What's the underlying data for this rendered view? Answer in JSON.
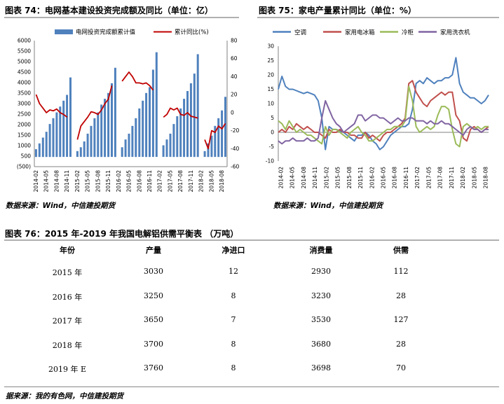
{
  "fig74": {
    "title": "图表 74：电网基本建设投资完成额及同比（单位：亿）",
    "source": "数据来源：Wind，中信建投期货"
  },
  "fig75": {
    "title": "图表 75：家电产量累计同比（单位：%）",
    "source": "数据来源：Wind，中信建投期货"
  },
  "fig76": {
    "title": "图表 76：2015 年-2019 年我国电解铝供需平衡表 （万吨）",
    "headers": [
      "年份",
      "产量",
      "净进口",
      "消费量",
      "供需"
    ],
    "rows": [
      [
        "2015 年",
        "3030",
        "12",
        "2930",
        "112"
      ],
      [
        "2016 年",
        "3250",
        "8",
        "3230",
        "28"
      ],
      [
        "2017 年",
        "3650",
        "7",
        "3530",
        "127"
      ],
      [
        "2018 年",
        "3700",
        "8",
        "3680",
        "28"
      ],
      [
        "2019 年 E",
        "3760",
        "8",
        "3698",
        "70"
      ]
    ],
    "source": "据来源：我的有色网，中信建投期货"
  },
  "chart_data": [
    {
      "type": "bar",
      "id": "fig74",
      "x_ticks": [
        "2014-02",
        "2014-05",
        "2014-08",
        "2014-11",
        "2015-02",
        "2015-05",
        "2015-08",
        "2015-11",
        "2016-02",
        "2016-05",
        "2016-08",
        "2016-11",
        "2017-02",
        "2017-05",
        "2017-08",
        "2017-11",
        "2018-02",
        "2018-05",
        "2018-08"
      ],
      "categories": [
        "2014-02",
        "2014-03",
        "2014-04",
        "2014-05",
        "2014-06",
        "2014-07",
        "2014-08",
        "2014-09",
        "2014-10",
        "2014-11",
        "2014-12",
        "2015-01",
        "2015-02",
        "2015-03",
        "2015-04",
        "2015-05",
        "2015-06",
        "2015-07",
        "2015-08",
        "2015-09",
        "2015-10",
        "2015-11",
        "2015-12",
        "2016-01",
        "2016-02",
        "2016-03",
        "2016-04",
        "2016-05",
        "2016-06",
        "2016-07",
        "2016-08",
        "2016-09",
        "2016-10",
        "2016-11",
        "2016-12",
        "2017-01",
        "2017-02",
        "2017-03",
        "2017-04",
        "2017-05",
        "2017-06",
        "2017-07",
        "2017-08",
        "2017-09",
        "2017-10",
        "2017-11",
        "2017-12",
        "2018-01",
        "2018-02",
        "2018-03",
        "2018-04",
        "2018-05",
        "2018-06",
        "2018-07",
        "2018-08",
        "2018-09"
      ],
      "series": [
        {
          "name": "电网投资完成额累计值",
          "axis": "left",
          "color": "#4f81bd",
          "values": [
            400,
            700,
            1000,
            1300,
            1700,
            2000,
            2300,
            2600,
            2900,
            3200,
            4100,
            null,
            300,
            500,
            800,
            1200,
            1600,
            2000,
            2300,
            2700,
            3000,
            3300,
            3800,
            4600,
            null,
            500,
            900,
            1200,
            1600,
            2000,
            2500,
            2900,
            3300,
            3600,
            4500,
            5400,
            null,
            600,
            900,
            1200,
            1700,
            2100,
            2500,
            3000,
            3400,
            3800,
            4300,
            5300,
            null,
            300,
            700,
            1100,
            1600,
            2000,
            2400,
            3100
          ]
        },
        {
          "name": "累计同比(%)",
          "axis": "right",
          "color": "#c00000",
          "values": [
            20,
            10,
            5,
            0,
            3,
            2,
            4,
            0,
            -2,
            -5,
            null,
            null,
            -30,
            -15,
            -10,
            -5,
            1,
            0,
            -2,
            3,
            10,
            15,
            30,
            null,
            null,
            35,
            40,
            45,
            40,
            33,
            33,
            32,
            33,
            30,
            25,
            null,
            null,
            -5,
            -2,
            5,
            3,
            5,
            -2,
            -3,
            0,
            -4,
            -5,
            -6,
            null,
            -30,
            -40,
            -20,
            -22,
            -15,
            -18,
            -12
          ]
        }
      ],
      "ylim_left": [
        -500,
        6000
      ],
      "ylim_right": [
        -60,
        80
      ],
      "yticks_left": [
        "(500)",
        "500",
        "1000",
        "1500",
        "2000",
        "2500",
        "3000",
        "3500",
        "4000",
        "4500",
        "5000",
        "5500",
        "6000"
      ],
      "yticks_right": [
        "-60",
        "-40",
        "-20",
        "0",
        "20",
        "40",
        "60",
        "80"
      ],
      "legend": "top"
    },
    {
      "type": "line",
      "id": "fig75",
      "x_ticks": [
        "2014-02",
        "2014-05",
        "2014-08",
        "2014-11",
        "2015-02",
        "2015-05",
        "2015-08",
        "2015-11",
        "2016-02",
        "2016-05",
        "2016-08",
        "2016-11",
        "2017-02",
        "2017-05",
        "2017-08",
        "2017-11",
        "2018-02",
        "2018-05",
        "2018-08"
      ],
      "series": [
        {
          "name": "空调",
          "color": "#4f81bd",
          "values": [
            15,
            19.5,
            16,
            15,
            15,
            14.5,
            14,
            13.5,
            14,
            13.5,
            13,
            11,
            5,
            -6,
            2,
            1,
            1,
            0.5,
            0,
            -1,
            -2,
            -3,
            -1,
            -1,
            0,
            -1,
            -3,
            -4,
            -6,
            -5,
            -3,
            -1,
            0,
            1,
            2,
            2,
            3,
            8,
            17,
            18,
            17,
            19,
            18,
            17,
            18,
            18,
            19,
            19,
            20,
            26,
            17,
            14,
            13,
            12,
            12,
            11,
            10,
            11,
            13
          ]
        },
        {
          "name": "家用电冰箱",
          "color": "#c0504d",
          "values": [
            0,
            1,
            0,
            2,
            1,
            3,
            2,
            1,
            2,
            1,
            0,
            0,
            -1,
            -2,
            1,
            0,
            0,
            1,
            0,
            0,
            -1,
            -1,
            -2,
            -2,
            0,
            -2,
            -1,
            -2,
            -3,
            -1,
            0,
            0,
            1,
            2,
            3,
            5,
            17,
            18,
            14,
            12,
            10,
            9,
            11,
            12,
            13,
            14,
            13,
            14,
            14,
            6,
            4,
            -2,
            -3,
            1,
            2,
            1,
            0,
            1,
            2
          ]
        },
        {
          "name": "冷柜",
          "color": "#9bbb59",
          "values": [
            4,
            3,
            1,
            4,
            2,
            0,
            1,
            0,
            -1,
            -1,
            -2,
            -3,
            -4,
            2,
            -1,
            1,
            1,
            0,
            -1,
            -2,
            0,
            1,
            2,
            0,
            -1,
            -3,
            -3,
            -2,
            -1,
            0,
            1,
            1,
            2,
            2,
            2,
            4,
            16,
            11,
            2,
            0,
            1,
            2,
            1,
            2,
            6,
            9,
            9,
            8,
            1,
            -4,
            -5,
            2,
            3,
            2,
            1,
            2,
            1,
            2,
            2
          ]
        },
        {
          "name": "家用洗衣机",
          "color": "#8064a2",
          "values": [
            -3,
            -4,
            -3,
            -3,
            -2,
            -3,
            -3,
            -3,
            -2,
            -3,
            -3,
            -2,
            5,
            11,
            8,
            5,
            3,
            2,
            0,
            1,
            2,
            3,
            6,
            6,
            4,
            5,
            6,
            6,
            5,
            5,
            4,
            3,
            4,
            5,
            4,
            4,
            5,
            5,
            4,
            4,
            4,
            3,
            4,
            3,
            3,
            4,
            3,
            3,
            2,
            1,
            0,
            -1,
            1,
            2,
            1,
            1,
            0,
            1,
            1
          ]
        }
      ],
      "ylim": [
        -10,
        30
      ],
      "yticks": [
        "-10",
        "-5",
        "0",
        "5",
        "10",
        "15",
        "20",
        "25",
        "30"
      ],
      "legend": "top"
    }
  ]
}
